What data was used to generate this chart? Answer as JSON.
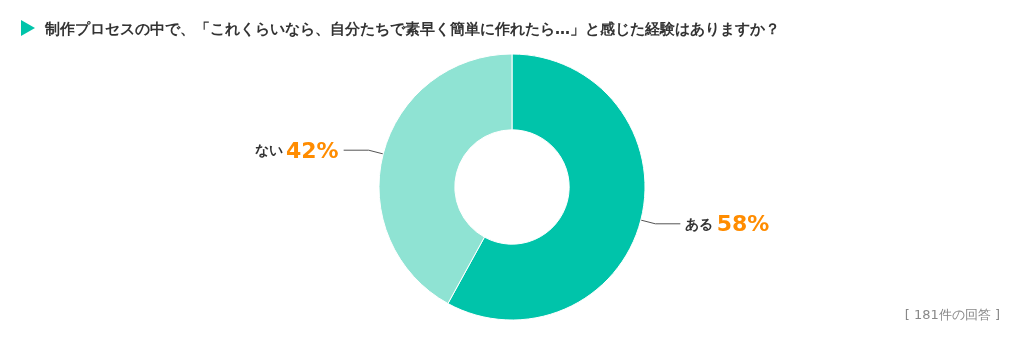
{
  "chart_data": {
    "type": "donut",
    "title": "制作プロセスの中で、「これくらいなら、自分たちで素早く簡単に作れたら…」と感じた経験はありますか？",
    "categories": [
      "ある",
      "ない"
    ],
    "values": [
      58,
      42
    ],
    "colors": [
      "#00c4aa",
      "#8fe3d3"
    ],
    "value_labels": [
      "58%",
      "42%"
    ],
    "annotations": [
      "[ 181件の回答 ]"
    ],
    "legend": false
  }
}
